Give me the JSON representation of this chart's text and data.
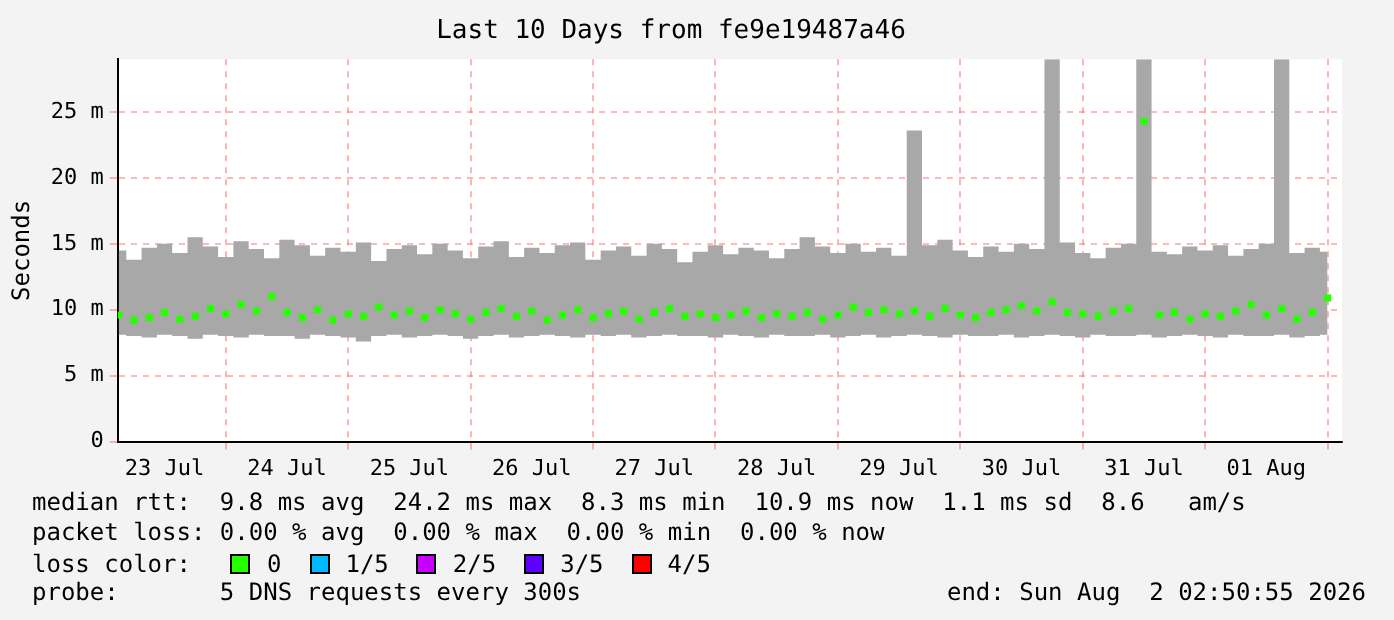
{
  "chart_data": {
    "type": "scatter",
    "title": "Last 10 Days from fe9e19487a46",
    "ylabel": "Seconds",
    "x": [
      "2026-07-23T03:00",
      "2026-07-23T06:00",
      "2026-07-23T09:00",
      "2026-07-23T12:00",
      "2026-07-23T15:00",
      "2026-07-23T18:00",
      "2026-07-23T21:00",
      "2026-07-24T00:00",
      "2026-07-24T03:00",
      "2026-07-24T06:00",
      "2026-07-24T09:00",
      "2026-07-24T12:00",
      "2026-07-24T15:00",
      "2026-07-24T18:00",
      "2026-07-24T21:00",
      "2026-07-25T00:00",
      "2026-07-25T03:00",
      "2026-07-25T06:00",
      "2026-07-25T09:00",
      "2026-07-25T12:00",
      "2026-07-25T15:00",
      "2026-07-25T18:00",
      "2026-07-25T21:00",
      "2026-07-26T00:00",
      "2026-07-26T03:00",
      "2026-07-26T06:00",
      "2026-07-26T09:00",
      "2026-07-26T12:00",
      "2026-07-26T15:00",
      "2026-07-26T18:00",
      "2026-07-26T21:00",
      "2026-07-27T00:00",
      "2026-07-27T03:00",
      "2026-07-27T06:00",
      "2026-07-27T09:00",
      "2026-07-27T12:00",
      "2026-07-27T15:00",
      "2026-07-27T18:00",
      "2026-07-27T21:00",
      "2026-07-28T00:00",
      "2026-07-28T03:00",
      "2026-07-28T06:00",
      "2026-07-28T09:00",
      "2026-07-28T12:00",
      "2026-07-28T15:00",
      "2026-07-28T18:00",
      "2026-07-28T21:00",
      "2026-07-29T00:00",
      "2026-07-29T03:00",
      "2026-07-29T06:00",
      "2026-07-29T09:00",
      "2026-07-29T12:00",
      "2026-07-29T15:00",
      "2026-07-29T18:00",
      "2026-07-29T21:00",
      "2026-07-30T00:00",
      "2026-07-30T03:00",
      "2026-07-30T06:00",
      "2026-07-30T09:00",
      "2026-07-30T12:00",
      "2026-07-30T15:00",
      "2026-07-30T18:00",
      "2026-07-30T21:00",
      "2026-07-31T00:00",
      "2026-07-31T03:00",
      "2026-07-31T06:00",
      "2026-07-31T09:00",
      "2026-07-31T12:00",
      "2026-07-31T15:00",
      "2026-07-31T18:00",
      "2026-07-31T21:00",
      "2026-08-01T00:00",
      "2026-08-01T03:00",
      "2026-08-01T06:00",
      "2026-08-01T09:00",
      "2026-08-01T12:00",
      "2026-08-01T15:00",
      "2026-08-01T18:00",
      "2026-08-01T21:00",
      "2026-08-02T00:00"
    ],
    "series": [
      {
        "name": "0",
        "color": "#26ff00",
        "values": [
          9.6,
          9.2,
          9.4,
          9.8,
          9.3,
          9.5,
          10.1,
          9.7,
          10.4,
          9.9,
          11.0,
          9.8,
          9.4,
          10.0,
          9.2,
          9.7,
          9.5,
          10.2,
          9.6,
          9.9,
          9.4,
          10.0,
          9.7,
          9.3,
          9.8,
          10.1,
          9.5,
          9.9,
          9.2,
          9.6,
          10.0,
          9.4,
          9.7,
          9.9,
          9.3,
          9.8,
          10.1,
          9.5,
          9.7,
          9.4,
          9.6,
          9.9,
          9.4,
          9.7,
          9.5,
          9.8,
          9.3,
          9.6,
          10.2,
          9.8,
          10.0,
          9.7,
          9.9,
          9.5,
          10.1,
          9.6,
          9.4,
          9.8,
          10.0,
          10.3,
          9.9,
          10.6,
          9.8,
          9.7,
          9.5,
          9.9,
          10.1,
          24.3,
          9.6,
          9.8,
          9.3,
          9.7,
          9.5,
          9.9,
          10.4,
          9.6,
          10.1,
          9.3,
          9.8,
          10.9
        ],
        "lower": [
          8.1,
          8.0,
          7.9,
          8.1,
          8.0,
          7.8,
          8.1,
          8.0,
          7.9,
          8.1,
          8.0,
          8.0,
          7.8,
          8.1,
          8.0,
          7.9,
          7.6,
          8.0,
          8.1,
          7.9,
          8.0,
          8.1,
          8.0,
          7.8,
          8.0,
          8.1,
          7.9,
          8.0,
          8.1,
          8.0,
          7.9,
          8.1,
          8.0,
          8.1,
          7.9,
          8.0,
          8.1,
          8.0,
          8.0,
          7.9,
          8.1,
          8.0,
          7.9,
          8.1,
          8.0,
          8.0,
          8.1,
          7.9,
          8.0,
          8.1,
          7.9,
          8.0,
          8.1,
          8.0,
          7.9,
          8.1,
          8.0,
          8.0,
          8.1,
          7.9,
          8.0,
          8.1,
          8.0,
          7.9,
          8.1,
          8.0,
          8.0,
          8.1,
          7.9,
          8.0,
          8.1,
          8.0,
          7.9,
          8.1,
          8.0,
          8.0,
          8.1,
          7.9,
          8.0,
          8.1
        ],
        "upper": [
          14.5,
          13.8,
          14.7,
          15.0,
          14.3,
          15.5,
          14.8,
          14.0,
          15.2,
          14.6,
          13.9,
          15.3,
          14.9,
          14.1,
          14.7,
          14.4,
          15.1,
          13.7,
          14.6,
          14.9,
          14.2,
          15.0,
          14.5,
          13.9,
          14.8,
          15.2,
          14.0,
          14.7,
          14.3,
          14.9,
          15.1,
          13.8,
          14.5,
          14.8,
          14.1,
          15.0,
          14.6,
          13.6,
          14.4,
          14.9,
          14.2,
          14.7,
          14.5,
          13.9,
          14.6,
          15.5,
          14.8,
          14.3,
          15.0,
          14.4,
          14.7,
          14.1,
          23.6,
          14.9,
          15.3,
          14.5,
          14.0,
          14.8,
          14.4,
          15.0,
          14.6,
          29.0,
          15.1,
          14.3,
          13.9,
          14.7,
          15.0,
          29.0,
          14.4,
          14.2,
          14.8,
          14.5,
          14.9,
          14.1,
          14.6,
          15.0,
          29.0,
          14.3,
          14.7,
          14.4
        ]
      },
      {
        "name": "1/5",
        "color": "#00b8ff",
        "values": [
          null,
          null,
          null,
          null,
          null,
          null,
          null,
          null,
          null,
          null,
          null,
          null,
          null,
          null,
          null,
          null,
          null,
          null,
          null,
          null,
          null,
          null,
          null,
          null,
          null,
          null,
          null,
          null,
          null,
          null,
          null,
          null,
          null,
          null,
          null,
          null,
          null,
          null,
          null,
          null,
          null,
          null,
          null,
          null,
          null,
          null,
          null,
          null,
          null,
          null,
          null,
          null,
          null,
          null,
          null,
          null,
          null,
          null,
          null,
          null,
          null,
          null,
          null,
          null,
          null,
          null,
          null,
          null,
          null,
          null,
          null,
          null,
          null,
          null,
          null,
          null,
          null,
          null,
          null,
          null
        ]
      },
      {
        "name": "2/5",
        "color": "#c600ff",
        "values": [
          null,
          null,
          null,
          null,
          null,
          null,
          null,
          null,
          null,
          null,
          null,
          null,
          null,
          null,
          null,
          null,
          null,
          null,
          null,
          null,
          null,
          null,
          null,
          null,
          null,
          null,
          null,
          null,
          null,
          null,
          null,
          null,
          null,
          null,
          null,
          null,
          null,
          null,
          null,
          null,
          null,
          null,
          null,
          null,
          null,
          null,
          null,
          null,
          null,
          null,
          null,
          null,
          null,
          null,
          null,
          null,
          null,
          null,
          null,
          null,
          null,
          null,
          null,
          null,
          null,
          null,
          null,
          null,
          null,
          null,
          null,
          null,
          null,
          null,
          null,
          null,
          null,
          null,
          null,
          null
        ]
      },
      {
        "name": "3/5",
        "color": "#5d00ff",
        "values": [
          null,
          null,
          null,
          null,
          null,
          null,
          null,
          null,
          null,
          null,
          null,
          null,
          null,
          null,
          null,
          null,
          null,
          null,
          null,
          null,
          null,
          null,
          null,
          null,
          null,
          null,
          null,
          null,
          null,
          null,
          null,
          null,
          null,
          null,
          null,
          null,
          null,
          null,
          null,
          null,
          null,
          null,
          null,
          null,
          null,
          null,
          null,
          null,
          null,
          null,
          null,
          null,
          null,
          null,
          null,
          null,
          null,
          null,
          null,
          null,
          null,
          null,
          null,
          null,
          null,
          null,
          null,
          null,
          null,
          null,
          null,
          null,
          null,
          null,
          null,
          null,
          null,
          null,
          null,
          null
        ]
      },
      {
        "name": "4/5",
        "color": "#ff0000",
        "values": [
          null,
          null,
          null,
          null,
          null,
          null,
          null,
          null,
          null,
          null,
          null,
          null,
          null,
          null,
          null,
          null,
          null,
          null,
          null,
          null,
          null,
          null,
          null,
          null,
          null,
          null,
          null,
          null,
          null,
          null,
          null,
          null,
          null,
          null,
          null,
          null,
          null,
          null,
          null,
          null,
          null,
          null,
          null,
          null,
          null,
          null,
          null,
          null,
          null,
          null,
          null,
          null,
          null,
          null,
          null,
          null,
          null,
          null,
          null,
          null,
          null,
          null,
          null,
          null,
          null,
          null,
          null,
          null,
          null,
          null,
          null,
          null,
          null,
          null,
          null,
          null,
          null,
          null,
          null,
          null
        ]
      }
    ],
    "marker": "square",
    "legend": "bottom",
    "legend_title": "loss color:",
    "xlim": [
      "2026-07-23T02:50",
      "2026-08-02T02:50"
    ],
    "xticks": [
      {
        "value": "2026-07-23T12:00",
        "label": "23 Jul"
      },
      {
        "value": "2026-07-24T00:00",
        "label": null
      },
      {
        "value": "2026-07-24T12:00",
        "label": "24 Jul"
      },
      {
        "value": "2026-07-25T00:00",
        "label": null
      },
      {
        "value": "2026-07-25T12:00",
        "label": "25 Jul"
      },
      {
        "value": "2026-07-26T00:00",
        "label": null
      },
      {
        "value": "2026-07-26T12:00",
        "label": "26 Jul"
      },
      {
        "value": "2026-07-27T00:00",
        "label": null
      },
      {
        "value": "2026-07-27T12:00",
        "label": "27 Jul"
      },
      {
        "value": "2026-07-28T00:00",
        "label": null
      },
      {
        "value": "2026-07-28T12:00",
        "label": "28 Jul"
      },
      {
        "value": "2026-07-29T00:00",
        "label": null
      },
      {
        "value": "2026-07-29T12:00",
        "label": "29 Jul"
      },
      {
        "value": "2026-07-30T00:00",
        "label": null
      },
      {
        "value": "2026-07-30T12:00",
        "label": "30 Jul"
      },
      {
        "value": "2026-07-31T00:00",
        "label": null
      },
      {
        "value": "2026-07-31T12:00",
        "label": "31 Jul"
      },
      {
        "value": "2026-08-01T00:00",
        "label": null
      },
      {
        "value": "2026-08-01T12:00",
        "label": "01 Aug"
      },
      {
        "value": "2026-08-02T00:00",
        "label": null
      }
    ],
    "ylim": [
      0,
      29
    ],
    "yticks": [
      0,
      {
        "value": 5,
        "label": "5 m"
      },
      {
        "value": 10,
        "label": "10 m"
      },
      {
        "value": 15,
        "label": "15 m"
      },
      {
        "value": 20,
        "label": "20 m"
      },
      {
        "value": 25,
        "label": "25 m"
      }
    ],
    "grid": true,
    "annotations": [
      "median rtt:  9.8 ms avg  24.2 ms max  8.3 ms min  10.9 ms now  1.1 ms sd  8.6   am/s",
      "packet loss: 0.00 % avg  0.00 % max  0.00 % min  0.00 % now",
      "probe:       5 DNS requests every 300s",
      "end: Sun Aug  2 02:50:55 2026"
    ]
  }
}
